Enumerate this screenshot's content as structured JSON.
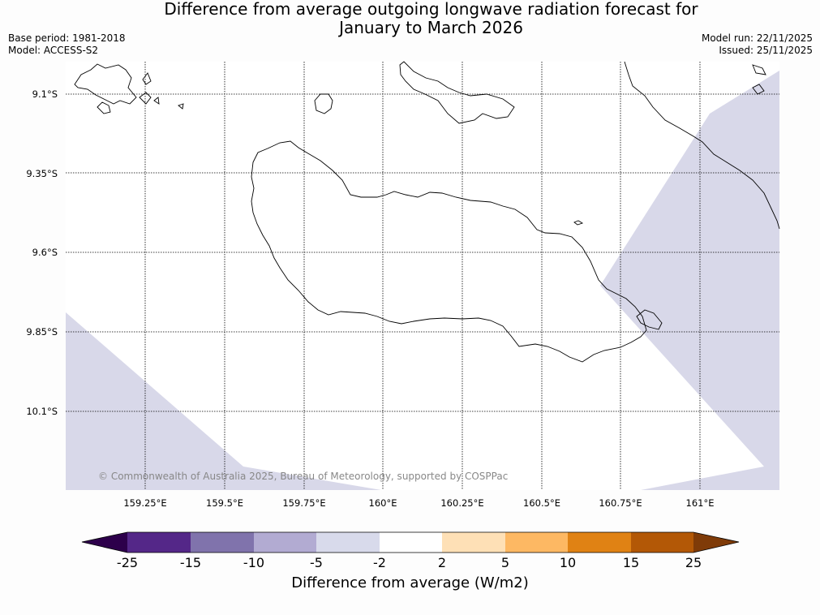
{
  "title": {
    "line1": "Difference from average outgoing longwave radiation forecast for",
    "line2": "January to March 2026"
  },
  "meta": {
    "base_period": "Base period: 1981-2018",
    "model": "Model: ACCESS-S2",
    "model_run": "Model run: 22/11/2025",
    "issued": "Issued: 25/11/2025"
  },
  "map": {
    "lat_labels": [
      "9.1°S",
      "9.35°S",
      "9.6°S",
      "9.85°S",
      "10.1°S"
    ],
    "lon_labels": [
      "159.25°E",
      "159.5°E",
      "159.75°E",
      "160°E",
      "160.25°E",
      "160.5°E",
      "160.75°E",
      "161°E"
    ],
    "copyright": "© Commonwealth of Australia 2025, Bureau of Meteorology, supported by COSPPac",
    "shading_color": "#d8d8e9",
    "coast_color": "#000000"
  },
  "colorbar": {
    "label": "Difference from average (W/m2)",
    "ticks": [
      "-25",
      "-15",
      "-10",
      "-5",
      "-2",
      "2",
      "5",
      "10",
      "15",
      "25"
    ],
    "colors": [
      "#2d004b",
      "#542788",
      "#8073ac",
      "#b2abd2",
      "#d8daeb",
      "#ffffff",
      "#fee0b6",
      "#fdb863",
      "#e08214",
      "#b35806",
      "#7f3b08"
    ]
  }
}
